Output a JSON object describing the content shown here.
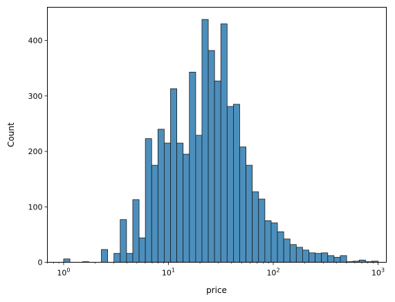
{
  "chart_data": {
    "type": "bar",
    "xlabel": "price",
    "ylabel": "Count",
    "xscale": "log",
    "xlim": [
      0.7,
      1200
    ],
    "ylim": [
      0,
      460
    ],
    "bar_color": "#4c8fbd",
    "bar_edge_color": "#1a1a1a",
    "yticks": [
      0,
      100,
      200,
      300,
      400
    ],
    "xticks": [
      {
        "base": "10",
        "exp": "0",
        "value": 1
      },
      {
        "base": "10",
        "exp": "1",
        "value": 10
      },
      {
        "base": "10",
        "exp": "2",
        "value": 100
      },
      {
        "base": "10",
        "exp": "3",
        "value": 1000
      }
    ],
    "log_range": [
      0,
      3
    ],
    "counts": [
      6,
      0,
      0,
      1,
      0,
      0,
      23,
      0,
      16,
      77,
      16,
      113,
      44,
      223,
      175,
      240,
      215,
      313,
      215,
      195,
      343,
      229,
      438,
      382,
      327,
      430,
      281,
      285,
      208,
      175,
      127,
      114,
      75,
      71,
      55,
      42,
      32,
      27,
      22,
      17,
      16,
      17,
      12,
      9,
      12,
      1,
      2,
      4,
      1,
      2
    ]
  }
}
